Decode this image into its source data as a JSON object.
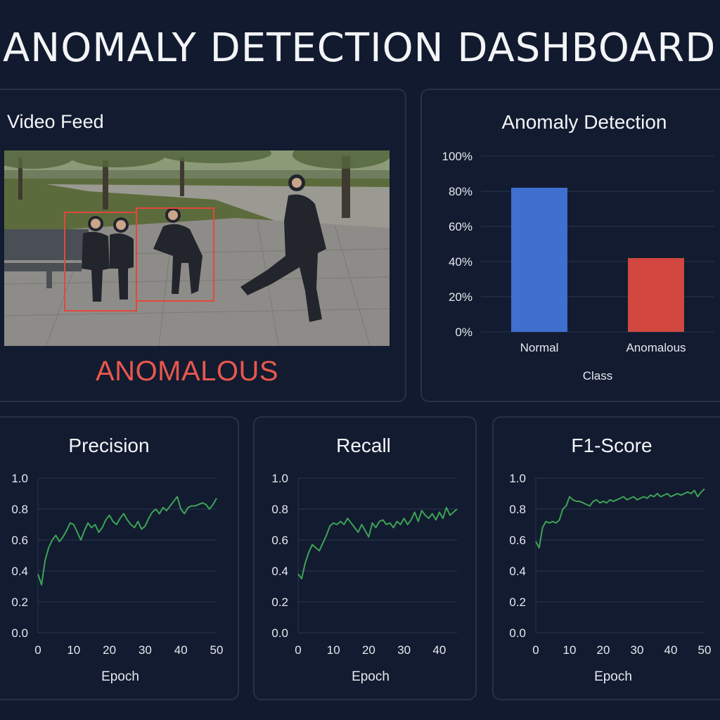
{
  "page": {
    "title": "ANOMALY DETECTION DASHBOARD"
  },
  "video": {
    "title": "Video Feed",
    "status": "ANOMALOUS",
    "status_color": "#e8584d",
    "box_color": "#e0483c"
  },
  "colors": {
    "background": "#111a2e",
    "card": "#121b30",
    "border": "#26324a",
    "normal": "#3f6fcf",
    "anomalous": "#d2473f",
    "line": "#3da356"
  },
  "chart_data": [
    {
      "type": "bar",
      "title": "Anomaly Detection",
      "xlabel": "Class",
      "ylabel": "",
      "categories": [
        "Normal",
        "Anomalous"
      ],
      "values": [
        82,
        42
      ],
      "colors": [
        "#3f6fcf",
        "#d2473f"
      ],
      "ylim": [
        0,
        100
      ],
      "yticks": [
        "0%",
        "20%",
        "40%",
        "60%",
        "80%",
        "100%"
      ],
      "grid": true
    },
    {
      "type": "line",
      "title": "Precision",
      "xlabel": "Epoch",
      "ylabel": "",
      "ylim": [
        0,
        1
      ],
      "xlim": [
        0,
        50
      ],
      "yticks": [
        "0.0",
        "0.2",
        "0.4",
        "0.6",
        "0.8",
        "1.0"
      ],
      "xticks": [
        "0",
        "10",
        "20",
        "30",
        "40",
        "50"
      ],
      "grid": true,
      "x": [
        0,
        1,
        2,
        3,
        4,
        5,
        6,
        7,
        8,
        9,
        10,
        11,
        12,
        13,
        14,
        15,
        16,
        17,
        18,
        19,
        20,
        21,
        22,
        23,
        24,
        25,
        26,
        27,
        28,
        29,
        30,
        31,
        32,
        33,
        34,
        35,
        36,
        37,
        38,
        39,
        40,
        41,
        42,
        43,
        44,
        45,
        46,
        47,
        48,
        49,
        50
      ],
      "y": [
        0.38,
        0.31,
        0.47,
        0.55,
        0.6,
        0.63,
        0.59,
        0.62,
        0.66,
        0.71,
        0.7,
        0.65,
        0.6,
        0.66,
        0.71,
        0.68,
        0.7,
        0.65,
        0.68,
        0.73,
        0.76,
        0.72,
        0.7,
        0.74,
        0.77,
        0.73,
        0.7,
        0.68,
        0.72,
        0.67,
        0.69,
        0.74,
        0.78,
        0.8,
        0.77,
        0.81,
        0.79,
        0.82,
        0.85,
        0.88,
        0.8,
        0.77,
        0.81,
        0.82,
        0.82,
        0.83,
        0.84,
        0.83,
        0.8,
        0.83,
        0.87
      ],
      "line_color": "#3da356"
    },
    {
      "type": "line",
      "title": "Recall",
      "xlabel": "Epoch",
      "ylabel": "",
      "ylim": [
        0,
        1
      ],
      "xlim": [
        0,
        45
      ],
      "yticks": [
        "0.0",
        "0.2",
        "0.4",
        "0.6",
        "0.8",
        "1.0"
      ],
      "xticks": [
        "0",
        "10",
        "20",
        "30",
        "40"
      ],
      "grid": true,
      "x": [
        0,
        1,
        2,
        3,
        4,
        5,
        6,
        7,
        8,
        9,
        10,
        11,
        12,
        13,
        14,
        15,
        16,
        17,
        18,
        19,
        20,
        21,
        22,
        23,
        24,
        25,
        26,
        27,
        28,
        29,
        30,
        31,
        32,
        33,
        34,
        35,
        36,
        37,
        38,
        39,
        40,
        41,
        42,
        43,
        44,
        45
      ],
      "y": [
        0.38,
        0.35,
        0.45,
        0.52,
        0.57,
        0.55,
        0.53,
        0.58,
        0.63,
        0.69,
        0.71,
        0.7,
        0.72,
        0.7,
        0.74,
        0.71,
        0.68,
        0.65,
        0.7,
        0.66,
        0.62,
        0.71,
        0.68,
        0.72,
        0.73,
        0.7,
        0.71,
        0.68,
        0.72,
        0.7,
        0.74,
        0.7,
        0.73,
        0.78,
        0.72,
        0.79,
        0.76,
        0.74,
        0.77,
        0.73,
        0.78,
        0.74,
        0.81,
        0.76,
        0.78,
        0.8
      ],
      "line_color": "#3da356"
    },
    {
      "type": "line",
      "title": "F1-Score",
      "xlabel": "Epoch",
      "ylabel": "",
      "ylim": [
        0,
        1
      ],
      "xlim": [
        0,
        50
      ],
      "yticks": [
        "0.0",
        "0.2",
        "0.4",
        "0.6",
        "0.8",
        "1.0"
      ],
      "xticks": [
        "0",
        "10",
        "20",
        "30",
        "40",
        "50"
      ],
      "grid": true,
      "x": [
        0,
        1,
        2,
        3,
        4,
        5,
        6,
        7,
        8,
        9,
        10,
        11,
        12,
        13,
        14,
        15,
        16,
        17,
        18,
        19,
        20,
        21,
        22,
        23,
        24,
        25,
        26,
        27,
        28,
        29,
        30,
        31,
        32,
        33,
        34,
        35,
        36,
        37,
        38,
        39,
        40,
        41,
        42,
        43,
        44,
        45,
        46,
        47,
        48,
        49,
        50
      ],
      "y": [
        0.59,
        0.55,
        0.68,
        0.72,
        0.71,
        0.72,
        0.71,
        0.73,
        0.8,
        0.82,
        0.88,
        0.86,
        0.85,
        0.85,
        0.84,
        0.83,
        0.82,
        0.85,
        0.86,
        0.84,
        0.85,
        0.84,
        0.86,
        0.85,
        0.86,
        0.87,
        0.88,
        0.86,
        0.87,
        0.88,
        0.86,
        0.87,
        0.88,
        0.87,
        0.89,
        0.88,
        0.9,
        0.88,
        0.89,
        0.9,
        0.88,
        0.89,
        0.9,
        0.89,
        0.9,
        0.91,
        0.9,
        0.92,
        0.88,
        0.91,
        0.93
      ],
      "line_color": "#3da356"
    }
  ]
}
